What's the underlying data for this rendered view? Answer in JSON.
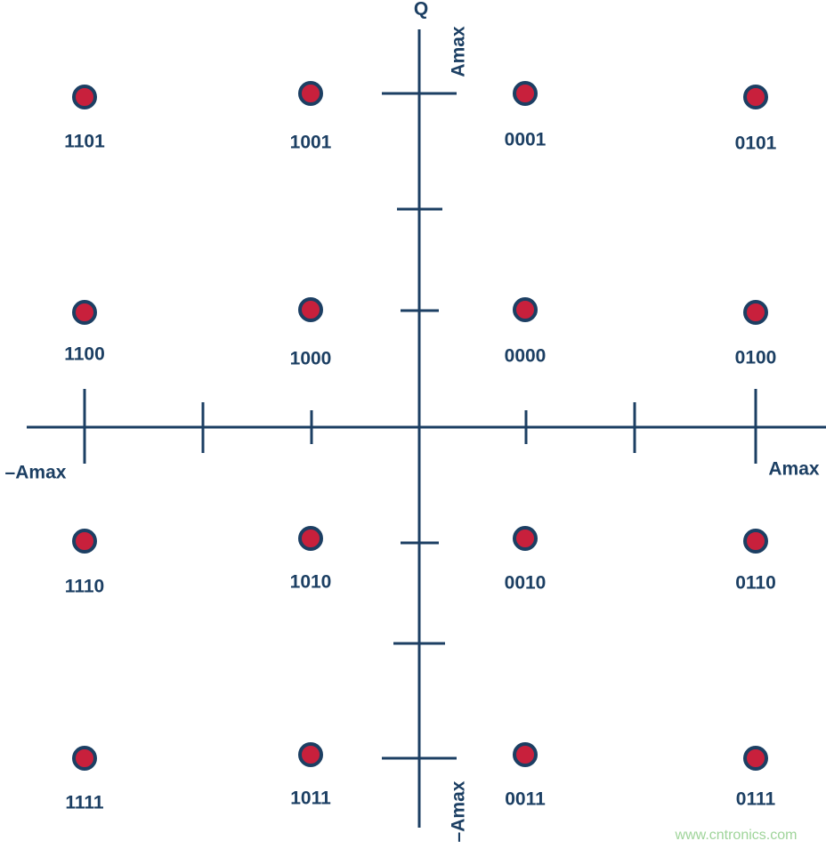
{
  "axis_labels": {
    "q": "Q",
    "q_pos": "Amax",
    "q_neg": "–Amax",
    "i_pos": "Amax",
    "i_neg": "–Amax"
  },
  "points": [
    {
      "label": "1101"
    },
    {
      "label": "1001"
    },
    {
      "label": "0001"
    },
    {
      "label": "0101"
    },
    {
      "label": "1100"
    },
    {
      "label": "1000"
    },
    {
      "label": "0000"
    },
    {
      "label": "0100"
    },
    {
      "label": "1110"
    },
    {
      "label": "1010"
    },
    {
      "label": "0010"
    },
    {
      "label": "0110"
    },
    {
      "label": "1111"
    },
    {
      "label": "1011"
    },
    {
      "label": "0011"
    },
    {
      "label": "0111"
    }
  ],
  "watermark": "www.cntronics.com"
}
